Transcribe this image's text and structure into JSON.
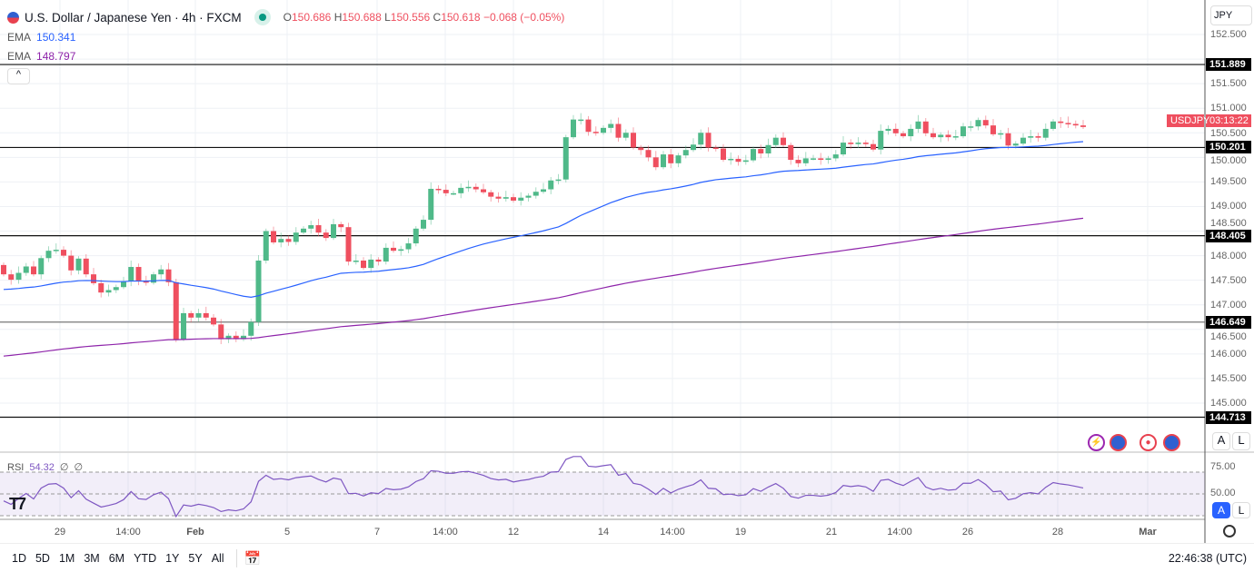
{
  "header": {
    "symbol_title": "U.S. Dollar / Japanese Yen · 4h · FXCM",
    "open_label": "O",
    "open": "150.686",
    "high_label": "H",
    "high": "150.688",
    "low_label": "L",
    "low": "150.556",
    "close_label": "C",
    "close": "150.618",
    "change": "−0.068 (−0.05%)"
  },
  "indicators": [
    {
      "name": "EMA",
      "value": "150.341",
      "color": "#2962ff"
    },
    {
      "name": "EMA",
      "value": "148.797",
      "color": "#9c27b0"
    }
  ],
  "rsi": {
    "name": "RSI",
    "value": "54.32",
    "extra1": "∅",
    "extra2": "∅",
    "levels": [
      "75.00",
      "50.00"
    ]
  },
  "currency_select": "JPY",
  "price_labels": [
    "152.500",
    "151.500",
    "151.000",
    "150.500",
    "150.000",
    "149.500",
    "149.000",
    "148.500",
    "148.000",
    "147.500",
    "147.000",
    "146.500",
    "146.000",
    "145.500",
    "145.000"
  ],
  "levels": [
    "151.889",
    "150.201",
    "148.405",
    "146.649",
    "144.713"
  ],
  "current": {
    "symbol": "USDJPY",
    "countdown": "03:13:22"
  },
  "time_ticks": [
    "29",
    "14:00",
    "Feb",
    "5",
    "7",
    "14:00",
    "12",
    "14",
    "14:00",
    "19",
    "21",
    "14:00",
    "26",
    "28",
    "Mar"
  ],
  "scale_buttons": {
    "auto": "A",
    "log": "L"
  },
  "collapse_label": "^",
  "ranges": [
    "1D",
    "5D",
    "1M",
    "3M",
    "6M",
    "YTD",
    "1Y",
    "5Y",
    "All"
  ],
  "clock": "22:46:38 (UTC)",
  "colors": {
    "up": "#4fb989",
    "down": "#ef4f5f",
    "ema_fast": "#2962ff",
    "ema_slow": "#8e24aa",
    "rsi": "#7e57c2"
  },
  "chart_data": {
    "type": "candlestick",
    "first_open": 147.81,
    "closes": [
      147.62,
      147.51,
      147.65,
      147.78,
      147.62,
      147.95,
      148.1,
      148.12,
      148.0,
      147.7,
      147.94,
      147.62,
      147.44,
      147.25,
      147.3,
      147.36,
      147.48,
      147.77,
      147.48,
      147.45,
      147.62,
      147.72,
      147.46,
      146.3,
      146.83,
      146.74,
      146.83,
      146.74,
      146.6,
      146.3,
      146.37,
      146.3,
      146.37,
      146.65,
      147.9,
      148.5,
      148.27,
      148.34,
      148.28,
      148.47,
      148.55,
      148.62,
      148.47,
      148.36,
      148.64,
      148.58,
      147.88,
      147.9,
      147.75,
      147.92,
      147.88,
      148.16,
      148.1,
      148.13,
      148.25,
      148.55,
      148.73,
      149.36,
      149.34,
      149.27,
      149.27,
      149.38,
      149.4,
      149.35,
      149.29,
      149.2,
      149.16,
      149.19,
      149.12,
      149.18,
      149.22,
      149.3,
      149.35,
      149.53,
      149.55,
      150.41,
      150.77,
      150.77,
      150.52,
      150.5,
      150.6,
      150.68,
      150.4,
      150.5,
      150.2,
      150.15,
      150.0,
      149.8,
      150.06,
      149.88,
      150.04,
      150.15,
      150.26,
      150.5,
      150.2,
      150.18,
      149.95,
      149.97,
      149.91,
      149.94,
      150.17,
      150.08,
      150.25,
      150.4,
      150.25,
      149.95,
      149.88,
      149.98,
      149.98,
      149.95,
      149.98,
      150.06,
      150.3,
      150.27,
      150.3,
      150.27,
      150.16,
      150.54,
      150.58,
      150.49,
      150.43,
      150.58,
      150.73,
      150.49,
      150.41,
      150.46,
      150.41,
      150.43,
      150.63,
      150.63,
      150.76,
      150.65,
      150.47,
      150.49,
      150.24,
      150.28,
      150.4,
      150.43,
      150.4,
      150.58,
      150.73,
      150.7,
      150.68,
      150.65,
      150.618
    ],
    "ema_fast_seed": 147.3,
    "ema_fast_period": 50,
    "ema_slow_seed": 145.94,
    "ema_slow_period": 200,
    "ylim": [
      144.45,
      152.7
    ],
    "rsi_ylim": [
      20,
      80
    ]
  }
}
